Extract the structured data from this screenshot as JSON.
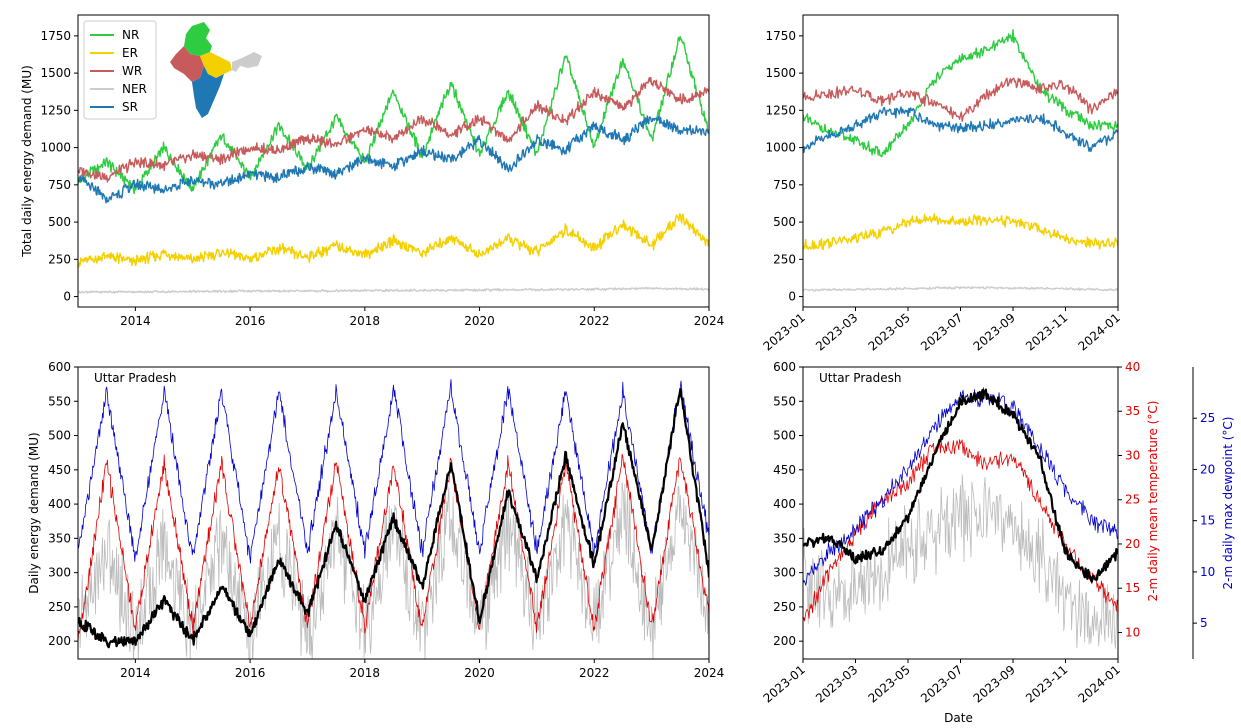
{
  "chart_data": [
    {
      "id": "top_left",
      "type": "line",
      "ylabel": "Total daily energy demand (MU)",
      "xlim": [
        "2013-01",
        "2024-01"
      ],
      "ylim": [
        -70,
        1890
      ],
      "xticks": [
        {
          "v": "2014-01",
          "label": "2014"
        },
        {
          "v": "2016-01",
          "label": "2016"
        },
        {
          "v": "2018-01",
          "label": "2018"
        },
        {
          "v": "2020-01",
          "label": "2020"
        },
        {
          "v": "2022-01",
          "label": "2022"
        },
        {
          "v": "2024-01",
          "label": "2024"
        }
      ],
      "yticks": [
        0,
        250,
        500,
        750,
        1000,
        1250,
        1500,
        1750
      ],
      "legend": {
        "position": "top-left",
        "entries": [
          "NR",
          "ER",
          "WR",
          "NER",
          "SR"
        ]
      },
      "inset": "india-region-map",
      "series": [
        {
          "name": "NR",
          "color": "#2ecc40",
          "x": [
            "2013-01",
            "2013-07",
            "2014-01",
            "2014-07",
            "2015-01",
            "2015-07",
            "2016-01",
            "2016-07",
            "2017-01",
            "2017-07",
            "2018-01",
            "2018-07",
            "2019-01",
            "2019-07",
            "2020-01",
            "2020-07",
            "2021-01",
            "2021-07",
            "2022-01",
            "2022-07",
            "2023-01",
            "2023-07",
            "2024-01"
          ],
          "y": [
            780,
            900,
            720,
            1000,
            720,
            1080,
            800,
            1150,
            860,
            1200,
            900,
            1380,
            940,
            1440,
            950,
            1380,
            950,
            1620,
            1000,
            1600,
            1050,
            1750,
            1100
          ]
        },
        {
          "name": "ER",
          "color": "#f5d000",
          "x": [
            "2013-01",
            "2013-07",
            "2014-01",
            "2014-07",
            "2015-01",
            "2015-07",
            "2016-01",
            "2016-07",
            "2017-01",
            "2017-07",
            "2018-01",
            "2018-07",
            "2019-01",
            "2019-07",
            "2020-01",
            "2020-07",
            "2021-01",
            "2021-07",
            "2022-01",
            "2022-07",
            "2023-01",
            "2023-07",
            "2024-01"
          ],
          "y": [
            230,
            270,
            235,
            290,
            245,
            300,
            255,
            320,
            265,
            340,
            280,
            380,
            290,
            400,
            280,
            390,
            300,
            450,
            320,
            490,
            340,
            540,
            350
          ]
        },
        {
          "name": "WR",
          "color": "#c75b5b",
          "x": [
            "2013-01",
            "2013-07",
            "2014-01",
            "2014-07",
            "2015-01",
            "2015-07",
            "2016-01",
            "2016-07",
            "2017-01",
            "2017-07",
            "2018-01",
            "2018-07",
            "2019-01",
            "2019-07",
            "2020-01",
            "2020-07",
            "2021-01",
            "2021-07",
            "2022-01",
            "2022-07",
            "2023-01",
            "2023-07",
            "2024-01"
          ],
          "y": [
            850,
            800,
            900,
            880,
            950,
            920,
            1000,
            980,
            1060,
            1020,
            1120,
            1060,
            1200,
            1080,
            1200,
            1050,
            1280,
            1180,
            1380,
            1260,
            1450,
            1320,
            1380
          ]
        },
        {
          "name": "NER",
          "color": "#cccccc",
          "x": [
            "2013-01",
            "2014-01",
            "2015-01",
            "2016-01",
            "2017-01",
            "2018-01",
            "2019-01",
            "2020-01",
            "2021-01",
            "2022-01",
            "2023-01",
            "2024-01"
          ],
          "y": [
            30,
            32,
            34,
            36,
            38,
            40,
            42,
            44,
            46,
            50,
            55,
            50
          ]
        },
        {
          "name": "SR",
          "color": "#1f77b4",
          "x": [
            "2013-01",
            "2013-07",
            "2014-01",
            "2014-07",
            "2015-01",
            "2015-07",
            "2016-01",
            "2016-07",
            "2017-01",
            "2017-07",
            "2018-01",
            "2018-07",
            "2019-01",
            "2019-07",
            "2020-01",
            "2020-07",
            "2021-01",
            "2021-07",
            "2022-01",
            "2022-07",
            "2023-01",
            "2023-07",
            "2024-01"
          ],
          "y": [
            800,
            650,
            750,
            720,
            780,
            760,
            820,
            800,
            870,
            830,
            920,
            880,
            980,
            920,
            1050,
            850,
            1050,
            980,
            1150,
            1050,
            1200,
            1120,
            1100
          ]
        }
      ]
    },
    {
      "id": "top_right",
      "type": "line",
      "xlim": [
        "2023-01",
        "2024-01"
      ],
      "ylim": [
        -70,
        1890
      ],
      "xticks": [
        "2023-01",
        "2023-03",
        "2023-05",
        "2023-07",
        "2023-09",
        "2023-11",
        "2024-01"
      ],
      "yticks": [
        0,
        250,
        500,
        750,
        1000,
        1250,
        1500,
        1750
      ],
      "series": [
        {
          "name": "NR",
          "color": "#2ecc40",
          "x": [
            "2023-01",
            "2023-02",
            "2023-03",
            "2023-04",
            "2023-05",
            "2023-06",
            "2023-07",
            "2023-08",
            "2023-09",
            "2023-10",
            "2023-11",
            "2023-12",
            "2024-01"
          ],
          "y": [
            1200,
            1100,
            1050,
            950,
            1150,
            1450,
            1600,
            1650,
            1750,
            1400,
            1250,
            1150,
            1150
          ]
        },
        {
          "name": "ER",
          "color": "#f5d000",
          "x": [
            "2023-01",
            "2023-02",
            "2023-03",
            "2023-04",
            "2023-05",
            "2023-06",
            "2023-07",
            "2023-08",
            "2023-09",
            "2023-10",
            "2023-11",
            "2023-12",
            "2024-01"
          ],
          "y": [
            340,
            360,
            390,
            430,
            500,
            520,
            500,
            520,
            500,
            460,
            390,
            350,
            360
          ]
        },
        {
          "name": "WR",
          "color": "#c75b5b",
          "x": [
            "2023-01",
            "2023-02",
            "2023-03",
            "2023-04",
            "2023-05",
            "2023-06",
            "2023-07",
            "2023-08",
            "2023-09",
            "2023-10",
            "2023-11",
            "2023-12",
            "2024-01"
          ],
          "y": [
            1330,
            1370,
            1380,
            1320,
            1360,
            1300,
            1200,
            1350,
            1450,
            1400,
            1420,
            1250,
            1380
          ]
        },
        {
          "name": "NER",
          "color": "#cccccc",
          "x": [
            "2023-01",
            "2023-04",
            "2023-07",
            "2023-10",
            "2024-01"
          ],
          "y": [
            45,
            50,
            60,
            55,
            45
          ]
        },
        {
          "name": "SR",
          "color": "#1f77b4",
          "x": [
            "2023-01",
            "2023-02",
            "2023-03",
            "2023-04",
            "2023-05",
            "2023-06",
            "2023-07",
            "2023-08",
            "2023-09",
            "2023-10",
            "2023-11",
            "2023-12",
            "2024-01"
          ],
          "y": [
            1000,
            1080,
            1150,
            1230,
            1250,
            1150,
            1130,
            1150,
            1180,
            1200,
            1100,
            1000,
            1100
          ]
        }
      ]
    },
    {
      "id": "bottom_left",
      "type": "line",
      "annotation": "Uttar Pradesh",
      "ylabel": "Daily energy demand (MU)",
      "xlim": [
        "2013-01",
        "2024-01"
      ],
      "ylim": [
        174,
        600
      ],
      "xticks": [
        {
          "v": "2014-01",
          "label": "2014"
        },
        {
          "v": "2016-01",
          "label": "2016"
        },
        {
          "v": "2018-01",
          "label": "2018"
        },
        {
          "v": "2020-01",
          "label": "2020"
        },
        {
          "v": "2022-01",
          "label": "2022"
        },
        {
          "v": "2024-01",
          "label": "2024"
        }
      ],
      "yticks": [
        200,
        250,
        300,
        350,
        400,
        450,
        500,
        550,
        600
      ],
      "series": [
        {
          "color": "#bbbbbb",
          "axis": "left",
          "x": [
            "2013-01",
            "2013-07",
            "2014-01",
            "2014-07",
            "2015-01",
            "2015-07",
            "2016-01",
            "2016-07",
            "2017-01",
            "2017-07",
            "2018-01",
            "2018-07",
            "2019-01",
            "2019-07",
            "2020-01",
            "2020-07",
            "2021-01",
            "2021-07",
            "2022-01",
            "2022-07",
            "2023-01",
            "2023-07",
            "2024-01"
          ],
          "y": [
            220,
            330,
            210,
            340,
            210,
            350,
            210,
            350,
            210,
            360,
            220,
            370,
            220,
            380,
            220,
            370,
            220,
            380,
            220,
            390,
            220,
            400,
            230
          ]
        },
        {
          "color": "#e00000",
          "axis": "left",
          "x": [
            "2013-01",
            "2013-07",
            "2014-01",
            "2014-07",
            "2015-01",
            "2015-07",
            "2016-01",
            "2016-07",
            "2017-01",
            "2017-07",
            "2018-01",
            "2018-07",
            "2019-01",
            "2019-07",
            "2020-01",
            "2020-07",
            "2021-01",
            "2021-07",
            "2022-01",
            "2022-07",
            "2023-01",
            "2023-07",
            "2024-01"
          ],
          "y": [
            200,
            460,
            220,
            460,
            220,
            460,
            220,
            460,
            220,
            460,
            220,
            460,
            220,
            460,
            220,
            460,
            220,
            460,
            220,
            470,
            220,
            470,
            240
          ]
        },
        {
          "color": "#0000cc",
          "axis": "left",
          "x": [
            "2013-01",
            "2013-07",
            "2014-01",
            "2014-07",
            "2015-01",
            "2015-07",
            "2016-01",
            "2016-07",
            "2017-01",
            "2017-07",
            "2018-01",
            "2018-07",
            "2019-01",
            "2019-07",
            "2020-01",
            "2020-07",
            "2021-01",
            "2021-07",
            "2022-01",
            "2022-07",
            "2023-01",
            "2023-07",
            "2024-01"
          ],
          "y": [
            330,
            565,
            320,
            565,
            320,
            565,
            320,
            565,
            330,
            565,
            330,
            570,
            330,
            570,
            330,
            570,
            330,
            565,
            330,
            565,
            330,
            575,
            350
          ]
        },
        {
          "color": "#000000",
          "axis": "left",
          "x": [
            "2013-01",
            "2013-07",
            "2014-01",
            "2014-07",
            "2015-01",
            "2015-07",
            "2016-01",
            "2016-07",
            "2017-01",
            "2017-07",
            "2018-01",
            "2018-07",
            "2019-01",
            "2019-07",
            "2020-01",
            "2020-07",
            "2021-01",
            "2021-07",
            "2022-01",
            "2022-07",
            "2023-01",
            "2023-07",
            "2024-01"
          ],
          "y": [
            230,
            200,
            200,
            260,
            200,
            280,
            210,
            320,
            240,
            370,
            260,
            380,
            280,
            460,
            230,
            420,
            290,
            470,
            310,
            520,
            330,
            570,
            300
          ]
        }
      ]
    },
    {
      "id": "bottom_right",
      "type": "line",
      "annotation": "Uttar Pradesh",
      "xlabel": "Date",
      "xlim": [
        "2023-01",
        "2024-01"
      ],
      "ylim": [
        174,
        600
      ],
      "xticks": [
        "2023-01",
        "2023-03",
        "2023-05",
        "2023-07",
        "2023-09",
        "2023-11",
        "2024-01"
      ],
      "yticks": [
        200,
        250,
        300,
        350,
        400,
        450,
        500,
        550,
        600
      ],
      "y2label": "2-m daily mean temperature (°C)",
      "y2color": "#e00000",
      "y2lim": [
        7,
        40
      ],
      "y2ticks": [
        10,
        15,
        20,
        25,
        30,
        35,
        40
      ],
      "y3label": "2-m daily max dewpoint (°C)",
      "y3color": "#0000cc",
      "y3lim": [
        1.5,
        30
      ],
      "y3ticks": [
        5,
        10,
        15,
        20,
        25
      ],
      "series": [
        {
          "color": "#bbbbbb",
          "axis": "left",
          "x": [
            "2023-01",
            "2023-02",
            "2023-03",
            "2023-04",
            "2023-05",
            "2023-06",
            "2023-07",
            "2023-08",
            "2023-09",
            "2023-10",
            "2023-11",
            "2023-12",
            "2024-01"
          ],
          "y": [
            300,
            260,
            280,
            300,
            340,
            360,
            380,
            390,
            370,
            320,
            260,
            230,
            240
          ]
        },
        {
          "color": "#e00000",
          "axis": "y2",
          "x": [
            "2023-01",
            "2023-02",
            "2023-03",
            "2023-04",
            "2023-05",
            "2023-06",
            "2023-07",
            "2023-08",
            "2023-09",
            "2023-10",
            "2023-11",
            "2023-12",
            "2024-01"
          ],
          "y": [
            11,
            17,
            21,
            25,
            27,
            31,
            31,
            29,
            30,
            25,
            20,
            16,
            13
          ]
        },
        {
          "color": "#0000cc",
          "axis": "y3",
          "x": [
            "2023-01",
            "2023-02",
            "2023-03",
            "2023-04",
            "2023-05",
            "2023-06",
            "2023-07",
            "2023-08",
            "2023-09",
            "2023-10",
            "2023-11",
            "2023-12",
            "2024-01"
          ],
          "y": [
            9,
            12,
            14,
            17,
            20,
            24,
            27,
            27,
            26,
            22,
            18,
            15,
            14
          ]
        },
        {
          "color": "#000000",
          "axis": "left",
          "x": [
            "2023-01",
            "2023-02",
            "2023-03",
            "2023-04",
            "2023-05",
            "2023-06",
            "2023-07",
            "2023-08",
            "2023-09",
            "2023-10",
            "2023-11",
            "2023-12",
            "2024-01"
          ],
          "y": [
            340,
            350,
            320,
            330,
            380,
            470,
            550,
            560,
            530,
            470,
            330,
            290,
            330
          ]
        }
      ]
    }
  ]
}
